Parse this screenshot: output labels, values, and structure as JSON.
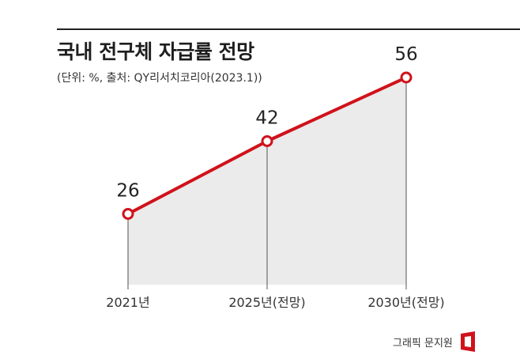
{
  "header": {
    "title": "국내 전구체 자급률 전망",
    "subtitle": "(단위: %, 출처: QY리서치코리아(2023.1))"
  },
  "footer": {
    "credit": "그래픽 문지원"
  },
  "colors": {
    "line": "#d0121b",
    "area": "#ebebeb",
    "marker_fill": "#ffffff"
  },
  "chart_data": {
    "type": "line",
    "categories": [
      "2021년",
      "2025년(전망)",
      "2030년(전망)"
    ],
    "series": [
      {
        "values": [
          26,
          42,
          56
        ]
      }
    ],
    "data_labels": [
      "26",
      "42",
      "56"
    ],
    "title": "국내 전구체 자급률 전망",
    "xlabel": "",
    "ylabel": "",
    "grid": false,
    "area_fill": true
  }
}
